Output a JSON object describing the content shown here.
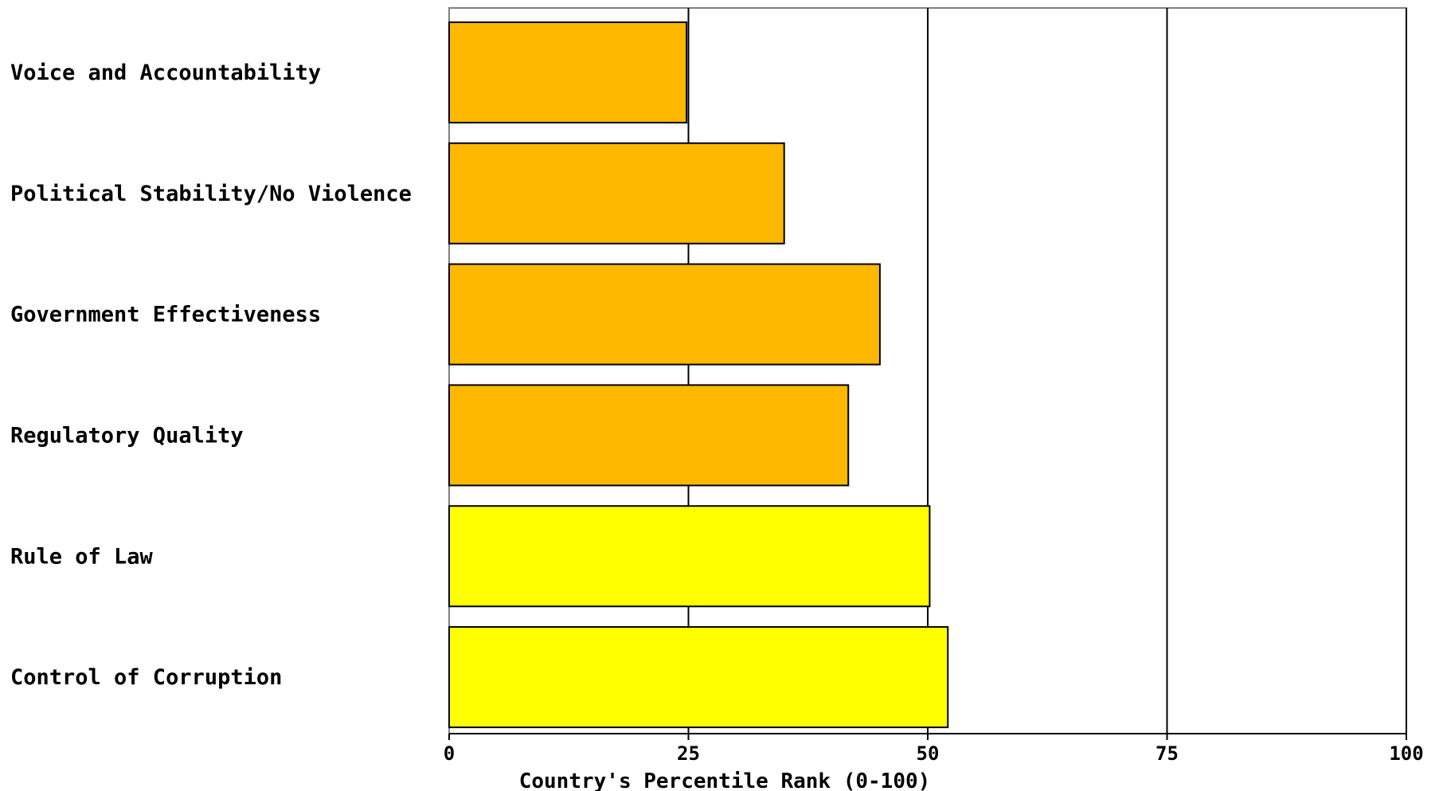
{
  "chart_data": {
    "type": "bar",
    "orientation": "horizontal",
    "categories": [
      "Voice and Accountability",
      "Political Stability/No Violence",
      "Government Effectiveness",
      "Regulatory Quality",
      "Rule of Law",
      "Control of Corruption"
    ],
    "values": [
      24.8,
      35.0,
      45.0,
      41.7,
      50.2,
      52.1
    ],
    "bar_colors": [
      "#FFB800",
      "#FFB800",
      "#FFB800",
      "#FFB800",
      "#FFFF00",
      "#FFFF00"
    ],
    "title": "",
    "xlabel": "Country's Percentile Rank (0-100)",
    "ylabel": "",
    "xlim": [
      0,
      100
    ],
    "xticks": [
      0,
      25,
      50,
      75,
      100
    ],
    "grid": true
  }
}
